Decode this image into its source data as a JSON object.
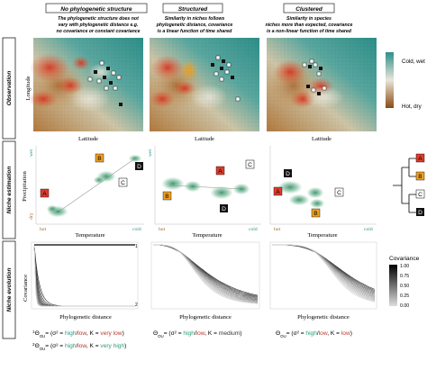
{
  "columns": [
    {
      "title": "No phylogenetic structure",
      "description": [
        "The phylogenetic structure does not",
        "vary with phylogenetic distance e.g.",
        "no covariance or constant covariance"
      ]
    },
    {
      "title": "Structured",
      "description": [
        "Similarity in niches follows",
        "phylogenetic distance, covariance",
        "is a linear function of time shared"
      ]
    },
    {
      "title": "Clustered",
      "description": [
        "Similarity in species",
        "niches more than expected, covariance",
        "is a non-linear function of time shared"
      ]
    }
  ],
  "rows": {
    "observation": "Observation",
    "niche_estimation": "Niche estimation",
    "niche_evolution": "Niche evolution"
  },
  "map": {
    "y_label": "Longitude",
    "x_label": "Latitude",
    "legend_top": "Cold, wet",
    "legend_bottom": "Hot, dry",
    "colors": {
      "cold_wet": "#2e8f8a",
      "mid": "#e9e6d9",
      "hot_dry": "#8a4a12",
      "species_red": "#e03a2a",
      "species_orange": "#f0a020"
    }
  },
  "niche": {
    "y_label": "Precipitation",
    "x_label": "Temperature",
    "y_top": "wet",
    "y_bottom": "dry",
    "x_left": "hot",
    "x_right": "cold",
    "species": [
      "A",
      "B",
      "C",
      "D"
    ],
    "colors": {
      "A": "#e03a2a",
      "B": "#f0a020",
      "C": "#ffffff",
      "D": "#111111",
      "ellipse": "#5aa583"
    }
  },
  "evolution": {
    "y_label": "Covariance",
    "x_label": "Phylogenetic distance",
    "legend_title": "Covariance",
    "legend_ticks": [
      "1.00",
      "0.75",
      "0.50",
      "0.25",
      "0.00"
    ],
    "marker_1": "1",
    "marker_2": "2"
  },
  "formulas": {
    "f1": {
      "sup": "1",
      "prefix": "Θ",
      "sub": "OU",
      "parts": [
        "= (σ",
        "² = ",
        "high",
        "/",
        "low",
        ", K = ",
        "very low",
        ")"
      ]
    },
    "f2": {
      "sup": "2",
      "prefix": "Θ",
      "sub": "OU",
      "parts": [
        "= (σ",
        "² = ",
        "high",
        "/",
        "low",
        ", K = ",
        "very high",
        ")"
      ]
    },
    "f3": {
      "prefix": "Θ",
      "sub": "OU",
      "parts": [
        "= (σ",
        "² = ",
        "high",
        "/",
        "low",
        ", K = ",
        "medium",
        ")"
      ]
    },
    "f4": {
      "prefix": "Θ",
      "sub": "OU",
      "parts": [
        "= (σ",
        "² = ",
        "high",
        "/",
        "low",
        ", K = ",
        "low",
        ")"
      ]
    }
  },
  "formula_colors": {
    "high": "#2c9a7a",
    "low": "#c0392b",
    "very_low": "#c0392b",
    "very_high": "#2c9a7a",
    "medium": "#333333"
  }
}
